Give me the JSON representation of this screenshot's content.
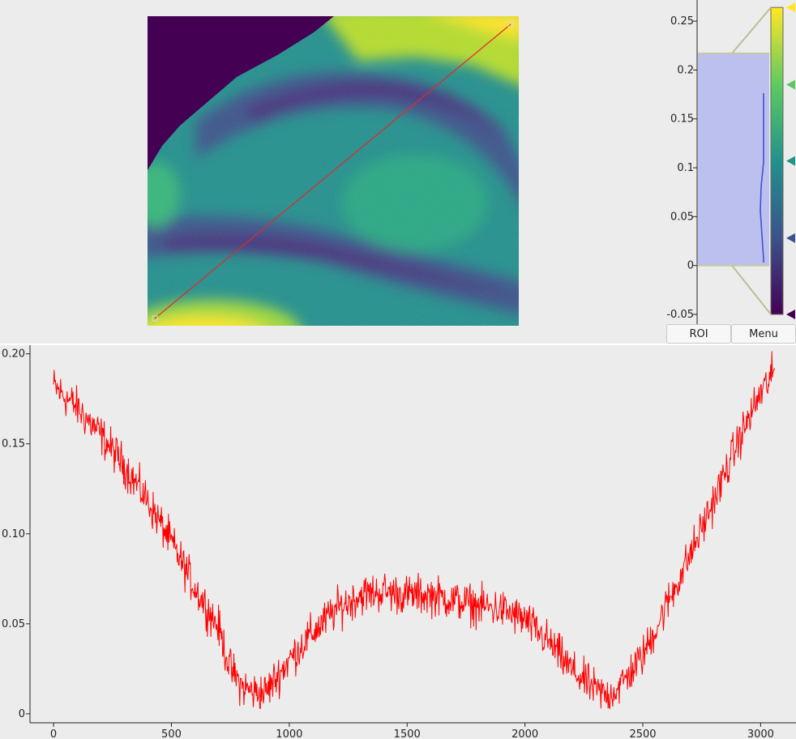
{
  "image_view": {
    "colormap": [
      "#440154",
      "#3b528b",
      "#21918c",
      "#5ec962",
      "#fde725"
    ],
    "line_roi_color": "#e8262b",
    "mask_color": "#440154"
  },
  "histogram": {
    "tick_labels": [
      "0.25",
      "0.2",
      "0.15",
      "0.1",
      "0.05",
      "0",
      "-0.05"
    ],
    "tick_values": [
      0.25,
      0.2,
      0.15,
      0.1,
      0.05,
      0,
      -0.05
    ],
    "range": [
      -0.05,
      0.265
    ],
    "region": [
      0,
      0.217
    ],
    "region_color": "#bcc0ef",
    "gradient_stops": [
      {
        "value": -0.05,
        "color": "#440154"
      },
      {
        "value": 0.028,
        "color": "#3b528b"
      },
      {
        "value": 0.107,
        "color": "#21918c"
      },
      {
        "value": 0.185,
        "color": "#5ec962"
      },
      {
        "value": 0.264,
        "color": "#fde725"
      }
    ]
  },
  "buttons": {
    "roi_label": "ROI",
    "menu_label": "Menu"
  },
  "chart_data": {
    "type": "line",
    "title": "",
    "xlabel": "",
    "ylabel": "",
    "xlim": [
      -100,
      3150
    ],
    "ylim": [
      -0.005,
      0.203
    ],
    "x_ticks": [
      0,
      500,
      1000,
      1500,
      2000,
      2500,
      3000
    ],
    "x_tick_labels": [
      "0",
      "500",
      "1000",
      "1500",
      "2000",
      "2500",
      "3000"
    ],
    "y_ticks": [
      0,
      0.05,
      0.1,
      0.15,
      0.2
    ],
    "y_tick_labels": [
      "0",
      "0.05",
      "0.10",
      "0.15",
      "0.20"
    ],
    "grid": false,
    "series": [
      {
        "color": "#ff0000",
        "x": [
          0,
          100,
          200,
          300,
          400,
          500,
          600,
          700,
          750,
          800,
          850,
          900,
          1000,
          1100,
          1200,
          1300,
          1400,
          1500,
          1600,
          1700,
          1800,
          1900,
          2000,
          2100,
          2200,
          2300,
          2350,
          2400,
          2500,
          2600,
          2700,
          2800,
          2900,
          3000,
          3060
        ],
        "y": [
          0.182,
          0.17,
          0.155,
          0.138,
          0.118,
          0.095,
          0.07,
          0.048,
          0.025,
          0.015,
          0.012,
          0.012,
          0.03,
          0.045,
          0.058,
          0.066,
          0.068,
          0.066,
          0.066,
          0.063,
          0.06,
          0.058,
          0.052,
          0.04,
          0.024,
          0.013,
          0.01,
          0.015,
          0.032,
          0.06,
          0.088,
          0.118,
          0.15,
          0.178,
          0.19
        ]
      }
    ]
  }
}
